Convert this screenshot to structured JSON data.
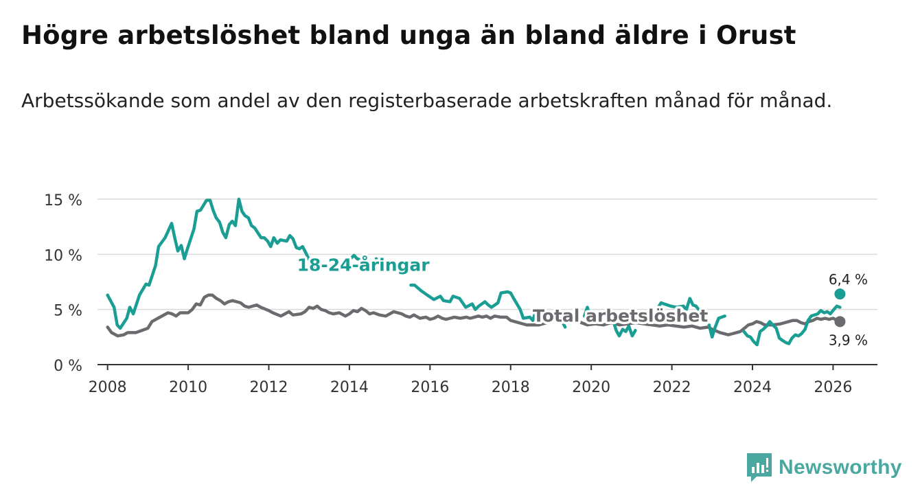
{
  "title": "Högre arbetslöshet bland unga än bland äldre i Orust",
  "subtitle": "Arbetssökande som andel av den registerbaserade arbetskraften månad för månad.",
  "brand": {
    "name": "Newsworthy",
    "icon": "newsworthy-logo-icon",
    "color": "#4aa8a1"
  },
  "colors": {
    "youth": "#1a9e94",
    "total": "#6b6b6f",
    "grid": "#d9d9d9",
    "axis": "#333333"
  },
  "chart_data": {
    "type": "line",
    "title": "Högre arbetslöshet bland unga än bland äldre i Orust",
    "xlabel": "",
    "ylabel": "",
    "xlim": [
      2007.75,
      2027.1
    ],
    "ylim": [
      0,
      15
    ],
    "grid": "horizontal",
    "y_ticks": [
      0,
      5,
      10,
      15
    ],
    "y_tick_labels": [
      "0 %",
      "5 %",
      "10 %",
      "15 %"
    ],
    "x_ticks": [
      2008,
      2010,
      2012,
      2014,
      2016,
      2018,
      2020,
      2022,
      2024,
      2026
    ],
    "x_tick_labels": [
      "2008",
      "2010",
      "2012",
      "2014",
      "2016",
      "2018",
      "2020",
      "2022",
      "2024",
      "2026"
    ],
    "series": [
      {
        "name": "18-24-åringar",
        "key": "youth",
        "label_x": 2012.7,
        "label_y": 8.5,
        "end_label": "6,4 %",
        "end_value": 6.4,
        "end_x": 2026.17,
        "points": [
          [
            2008.0,
            6.3
          ],
          [
            2008.17,
            5.2
          ],
          [
            2008.25,
            3.6
          ],
          [
            2008.33,
            3.3
          ],
          [
            2008.5,
            4.2
          ],
          [
            2008.58,
            5.2
          ],
          [
            2008.67,
            4.6
          ],
          [
            2008.83,
            6.3
          ],
          [
            2009.0,
            7.3
          ],
          [
            2009.08,
            7.2
          ],
          [
            2009.25,
            9.0
          ],
          [
            2009.33,
            10.7
          ],
          [
            2009.5,
            11.5
          ],
          [
            2009.67,
            12.8
          ],
          [
            2009.75,
            11.5
          ],
          [
            2009.83,
            10.3
          ],
          [
            2009.92,
            10.8
          ],
          [
            2010.0,
            9.6
          ],
          [
            2010.08,
            10.5
          ],
          [
            2010.25,
            12.3
          ],
          [
            2010.33,
            13.9
          ],
          [
            2010.42,
            14.0
          ],
          [
            2010.58,
            14.9
          ],
          [
            2010.67,
            14.9
          ],
          [
            2010.75,
            14.0
          ],
          [
            2010.83,
            13.3
          ],
          [
            2010.92,
            12.9
          ],
          [
            2011.0,
            12.0
          ],
          [
            2011.08,
            11.5
          ],
          [
            2011.17,
            12.7
          ],
          [
            2011.25,
            13.0
          ],
          [
            2011.33,
            12.6
          ],
          [
            2011.42,
            15.0
          ],
          [
            2011.5,
            13.9
          ],
          [
            2011.58,
            13.5
          ],
          [
            2011.67,
            13.3
          ],
          [
            2011.75,
            12.6
          ],
          [
            2011.83,
            12.4
          ],
          [
            2012.0,
            11.5
          ],
          [
            2012.08,
            11.5
          ],
          [
            2012.17,
            11.2
          ],
          [
            2012.25,
            10.7
          ],
          [
            2012.33,
            11.5
          ],
          [
            2012.42,
            11.0
          ],
          [
            2012.5,
            11.3
          ],
          [
            2012.67,
            11.2
          ],
          [
            2012.75,
            11.7
          ],
          [
            2012.83,
            11.4
          ],
          [
            2012.92,
            10.6
          ],
          [
            2013.0,
            10.5
          ],
          [
            2013.08,
            10.7
          ],
          [
            2013.17,
            10.1
          ],
          [
            2013.25,
            9.5
          ],
          [
            2013.33,
            9.0
          ],
          [
            2013.42,
            8.5
          ]
        ],
        "segments_after_label": [
          [
            [
              2014.17,
              9.5
            ],
            [
              2014.33,
              9.6
            ],
            [
              2014.42,
              9.9
            ],
            [
              2014.5,
              9.6
            ],
            [
              2014.58,
              9.5
            ]
          ],
          [
            [
              2015.0,
              9.6
            ],
            [
              2015.08,
              9.2
            ],
            [
              2015.25,
              8.8
            ]
          ],
          [
            [
              2015.9,
              7.2
            ],
            [
              2016.0,
              7.2
            ],
            [
              2016.17,
              6.7
            ],
            [
              2016.33,
              6.3
            ],
            [
              2016.5,
              5.9
            ],
            [
              2016.67,
              6.2
            ],
            [
              2016.75,
              5.8
            ],
            [
              2016.92,
              5.7
            ],
            [
              2017.0,
              6.2
            ],
            [
              2017.17,
              6.0
            ],
            [
              2017.25,
              5.6
            ],
            [
              2017.33,
              5.2
            ],
            [
              2017.5,
              5.5
            ],
            [
              2017.58,
              5.0
            ],
            [
              2017.67,
              5.3
            ],
            [
              2017.83,
              5.7
            ],
            [
              2017.92,
              5.4
            ],
            [
              2018.0,
              5.2
            ],
            [
              2018.17,
              5.6
            ],
            [
              2018.25,
              6.5
            ],
            [
              2018.42,
              6.6
            ],
            [
              2018.5,
              6.5
            ],
            [
              2018.58,
              6.0
            ],
            [
              2018.75,
              5.0
            ],
            [
              2018.83,
              4.2
            ],
            [
              2019.0,
              4.3
            ],
            [
              2019.08,
              4.0
            ],
            [
              2019.17,
              5.0
            ],
            [
              2019.33,
              4.8
            ]
          ],
          [
            [
              2019.58,
              4.6
            ],
            [
              2019.67,
              4.8
            ],
            [
              2019.75,
              4.3
            ],
            [
              2019.83,
              4.0
            ],
            [
              2019.92,
              3.4
            ]
          ],
          [
            [
              2020.42,
              4.4
            ],
            [
              2020.5,
              5.2
            ],
            [
              2020.58,
              4.3
            ],
            [
              2020.67,
              4.0
            ],
            [
              2020.75,
              4.4
            ]
          ],
          [
            [
              2021.17,
              4.0
            ],
            [
              2021.25,
              3.1
            ],
            [
              2021.33,
              2.6
            ],
            [
              2021.42,
              3.2
            ],
            [
              2021.5,
              3.0
            ],
            [
              2021.58,
              3.5
            ],
            [
              2021.67,
              2.6
            ],
            [
              2021.75,
              3.1
            ]
          ],
          [
            [
              2022.33,
              5.1
            ],
            [
              2022.42,
              5.6
            ],
            [
              2022.5,
              5.5
            ],
            [
              2022.67,
              5.3
            ],
            [
              2022.83,
              5.2
            ],
            [
              2023.0,
              5.3
            ],
            [
              2023.08,
              5.0
            ],
            [
              2023.17,
              6.0
            ],
            [
              2023.25,
              5.4
            ],
            [
              2023.33,
              5.3
            ],
            [
              2023.42,
              4.9
            ]
          ],
          [
            [
              2023.67,
              3.6
            ],
            [
              2023.75,
              2.5
            ],
            [
              2023.83,
              3.4
            ],
            [
              2023.92,
              4.2
            ],
            [
              2024.0,
              4.3
            ],
            [
              2024.08,
              4.4
            ]
          ],
          [
            [
              2024.58,
              3.0
            ],
            [
              2024.67,
              2.6
            ],
            [
              2024.75,
              2.5
            ],
            [
              2024.83,
              2.1
            ],
            [
              2024.92,
              1.8
            ],
            [
              2025.0,
              3.0
            ],
            [
              2025.08,
              3.2
            ],
            [
              2025.17,
              3.5
            ],
            [
              2025.25,
              3.9
            ],
            [
              2025.33,
              3.6
            ],
            [
              2025.42,
              3.3
            ],
            [
              2025.5,
              2.4
            ],
            [
              2025.58,
              2.2
            ],
            [
              2025.67,
              2.0
            ],
            [
              2025.75,
              1.9
            ],
            [
              2025.83,
              2.4
            ],
            [
              2025.92,
              2.7
            ],
            [
              2026.0,
              2.6
            ],
            [
              2026.08,
              2.8
            ],
            [
              2026.17,
              3.2
            ],
            [
              2026.25,
              4.0
            ],
            [
              2026.33,
              4.4
            ],
            [
              2026.5,
              4.6
            ],
            [
              2026.58,
              4.9
            ],
            [
              2026.67,
              4.7
            ],
            [
              2026.75,
              4.8
            ],
            [
              2026.83,
              4.6
            ],
            [
              2026.92,
              5.0
            ],
            [
              2027.0,
              5.3
            ],
            [
              2027.08,
              5.2
            ]
          ]
        ]
      },
      {
        "name": "Total arbetslöshet",
        "key": "total",
        "label_x": 2018.55,
        "label_y": 3.9,
        "end_label": "3,9 %",
        "end_value": 3.9,
        "end_x": 2026.17,
        "points": []
      }
    ]
  }
}
